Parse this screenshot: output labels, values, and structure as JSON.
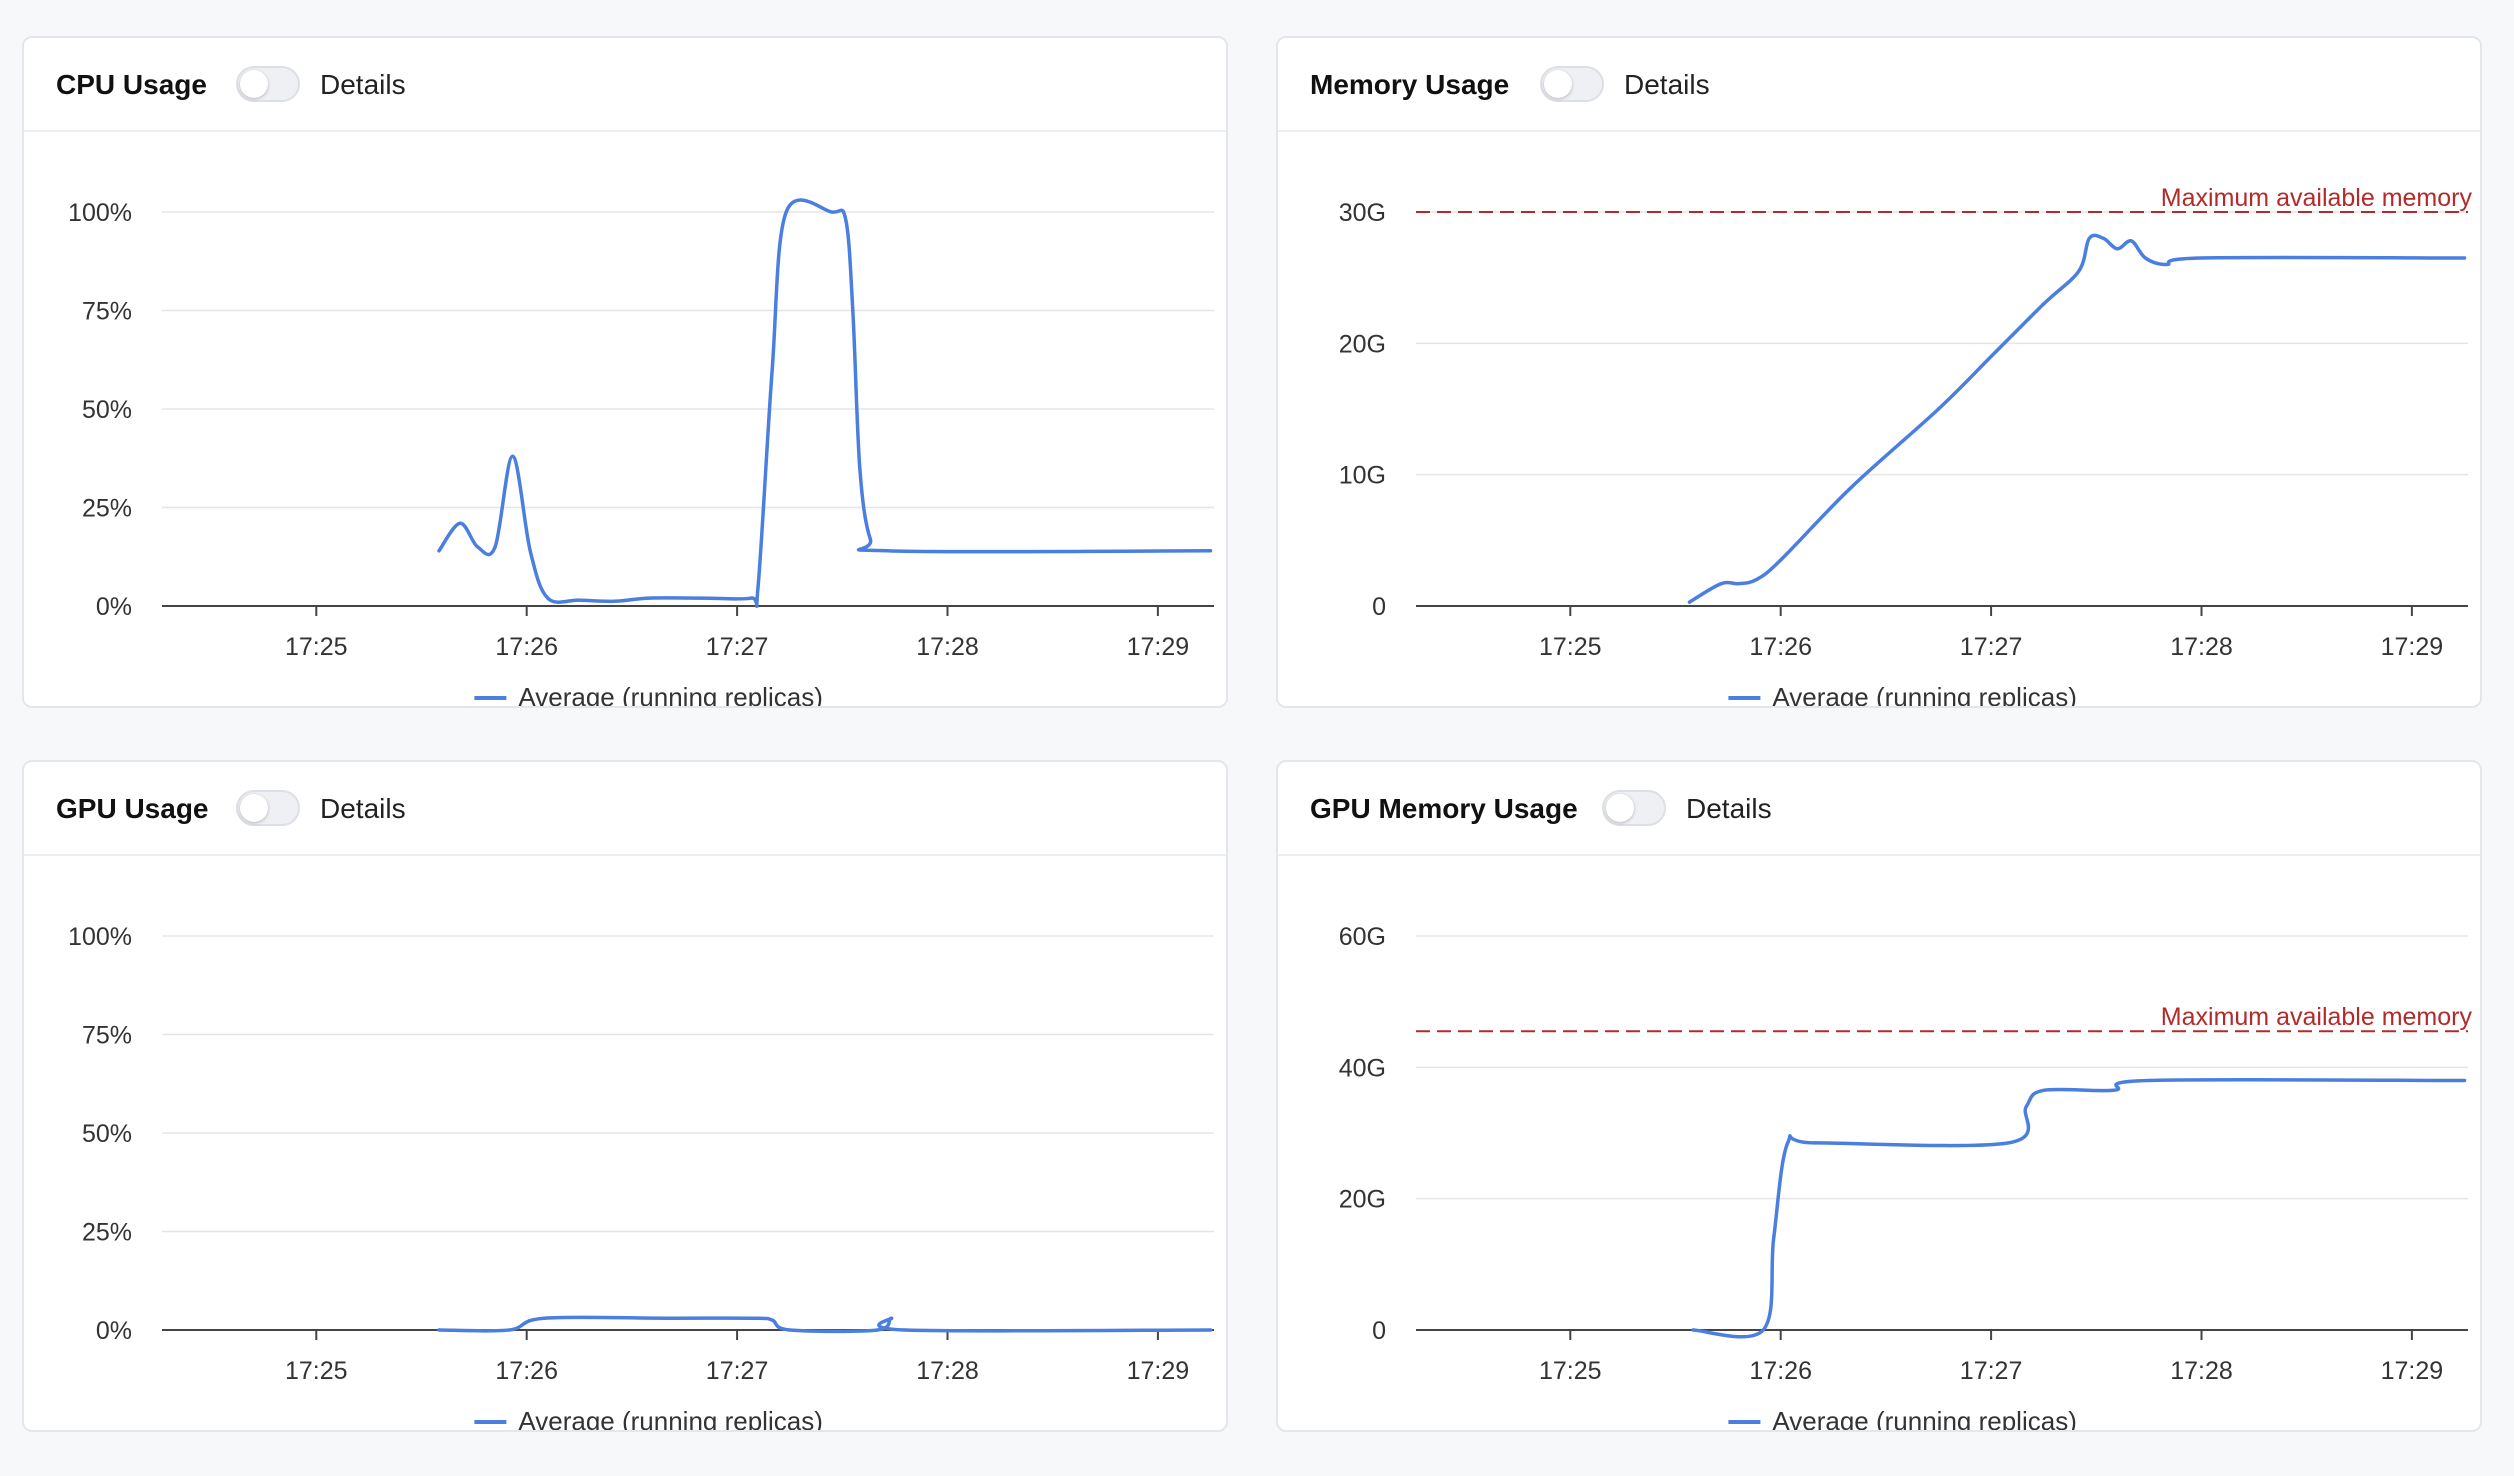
{
  "panels": [
    {
      "id": "cpu",
      "title": "CPU Usage",
      "toggle_label": "Details",
      "chart_data": {
        "type": "line",
        "title": "CPU Usage",
        "xlabel": "",
        "ylabel": "",
        "x_ticks": [
          "17:25",
          "17:26",
          "17:27",
          "17:28",
          "17:29"
        ],
        "y_ticks": [
          "0%",
          "25%",
          "50%",
          "75%",
          "100%"
        ],
        "ylim": [
          0,
          100
        ],
        "xlim": [
          "17:24:16",
          "17:29:16"
        ],
        "grid": true,
        "legend": "bottom-center",
        "reference_line": null,
        "series": [
          {
            "name": "Average (running replicas)",
            "color": "#4a7fe0",
            "points": [
              [
                "17:25:35",
                14
              ],
              [
                "17:25:41",
                21
              ],
              [
                "17:25:46",
                15
              ],
              [
                "17:25:51",
                15
              ],
              [
                "17:25:56",
                38
              ],
              [
                "17:26:01",
                14
              ],
              [
                "17:26:06",
                2
              ],
              [
                "17:26:15",
                1.5
              ],
              [
                "17:26:25",
                1.2
              ],
              [
                "17:26:35",
                2
              ],
              [
                "17:26:50",
                2
              ],
              [
                "17:27:04",
                2
              ],
              [
                "17:27:06",
                5
              ],
              [
                "17:27:10",
                60
              ],
              [
                "17:27:14",
                100
              ],
              [
                "17:27:27",
                100
              ],
              [
                "17:27:31",
                98
              ],
              [
                "17:27:33",
                75
              ],
              [
                "17:27:35",
                35
              ],
              [
                "17:27:38",
                17
              ],
              [
                "17:27:43",
                14
              ],
              [
                "17:29:15",
                14
              ]
            ]
          }
        ]
      }
    },
    {
      "id": "memory",
      "title": "Memory Usage",
      "toggle_label": "Details",
      "chart_data": {
        "type": "line",
        "title": "Memory Usage",
        "xlabel": "",
        "ylabel": "",
        "x_ticks": [
          "17:25",
          "17:26",
          "17:27",
          "17:28",
          "17:29"
        ],
        "y_ticks": [
          "0",
          "10G",
          "20G",
          "30G"
        ],
        "ylim": [
          0,
          30
        ],
        "xlim": [
          "17:24:16",
          "17:29:16"
        ],
        "grid": true,
        "legend": "bottom-center",
        "reference_line": {
          "value": 30,
          "label": "Maximum available memory",
          "color": "#b22a2a"
        },
        "series": [
          {
            "name": "Average (running replicas)",
            "color": "#4a7fe0",
            "points": [
              [
                "17:25:34",
                0.3
              ],
              [
                "17:25:43",
                1.7
              ],
              [
                "17:25:48",
                1.7
              ],
              [
                "17:25:53",
                2
              ],
              [
                "17:26:00",
                3.5
              ],
              [
                "17:26:20",
                9
              ],
              [
                "17:26:45",
                15
              ],
              [
                "17:27:00",
                19
              ],
              [
                "17:27:15",
                23
              ],
              [
                "17:27:25",
                25.5
              ],
              [
                "17:27:28",
                28
              ],
              [
                "17:27:32",
                28
              ],
              [
                "17:27:36",
                27.2
              ],
              [
                "17:27:40",
                27.8
              ],
              [
                "17:27:44",
                26.5
              ],
              [
                "17:27:50",
                26
              ],
              [
                "17:28:00",
                26.5
              ],
              [
                "17:29:15",
                26.5
              ]
            ]
          }
        ]
      }
    },
    {
      "id": "gpu",
      "title": "GPU Usage",
      "toggle_label": "Details",
      "chart_data": {
        "type": "line",
        "title": "GPU Usage",
        "xlabel": "",
        "ylabel": "",
        "x_ticks": [
          "17:25",
          "17:26",
          "17:27",
          "17:28",
          "17:29"
        ],
        "y_ticks": [
          "0%",
          "25%",
          "50%",
          "75%",
          "100%"
        ],
        "ylim": [
          0,
          100
        ],
        "xlim": [
          "17:24:16",
          "17:29:16"
        ],
        "grid": true,
        "legend": "bottom-center",
        "reference_line": null,
        "series": [
          {
            "name": "Average (running replicas)",
            "color": "#4a7fe0",
            "points": [
              [
                "17:25:35",
                0
              ],
              [
                "17:25:55",
                0
              ],
              [
                "17:26:05",
                3
              ],
              [
                "17:26:40",
                3
              ],
              [
                "17:27:05",
                3
              ],
              [
                "17:27:10",
                2.5
              ],
              [
                "17:27:15",
                0
              ],
              [
                "17:27:40",
                0
              ],
              [
                "17:27:44",
                3
              ],
              [
                "17:27:48",
                0
              ],
              [
                "17:29:15",
                0
              ]
            ]
          }
        ]
      }
    },
    {
      "id": "gpu-memory",
      "title": "GPU Memory Usage",
      "toggle_label": "Details",
      "chart_data": {
        "type": "line",
        "title": "GPU Memory Usage",
        "xlabel": "",
        "ylabel": "",
        "x_ticks": [
          "17:25",
          "17:26",
          "17:27",
          "17:28",
          "17:29"
        ],
        "y_ticks": [
          "0",
          "20G",
          "40G",
          "60G"
        ],
        "ylim": [
          0,
          60
        ],
        "xlim": [
          "17:24:16",
          "17:29:16"
        ],
        "grid": true,
        "legend": "bottom-center",
        "reference_line": {
          "value": 45.5,
          "label": "Maximum available memory",
          "color": "#b22a2a"
        },
        "series": [
          {
            "name": "Average (running replicas)",
            "color": "#4a7fe0",
            "points": [
              [
                "17:25:35",
                0
              ],
              [
                "17:25:55",
                0
              ],
              [
                "17:25:58",
                14
              ],
              [
                "17:26:02",
                28.5
              ],
              [
                "17:26:10",
                28.5
              ],
              [
                "17:27:05",
                28.5
              ],
              [
                "17:27:10",
                34
              ],
              [
                "17:27:15",
                36.5
              ],
              [
                "17:27:35",
                36.5
              ],
              [
                "17:27:45",
                38
              ],
              [
                "17:29:15",
                38
              ]
            ]
          }
        ]
      }
    }
  ]
}
